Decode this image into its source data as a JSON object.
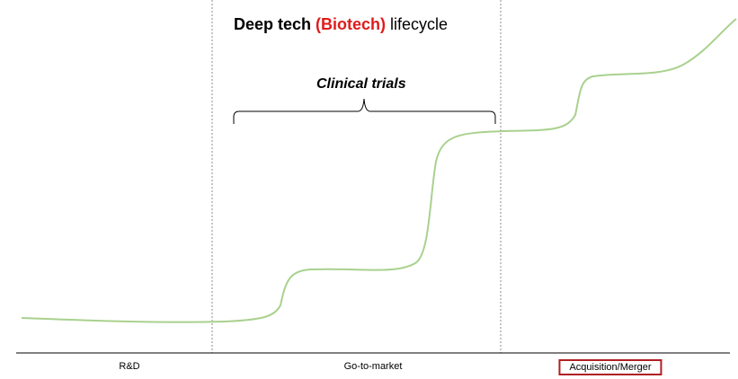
{
  "title": {
    "part1": "Deep tech ",
    "part2": "(Biotech)",
    "part3": " lifecycle",
    "accent_color": "#e01b1b"
  },
  "annotation": {
    "label": "Clinical trials"
  },
  "phases": [
    {
      "label": "R&D"
    },
    {
      "label": "Go-to-market"
    },
    {
      "label": "Acquisition/Merger",
      "highlighted": true,
      "highlight_color": "#b01f24"
    }
  ],
  "curve": {
    "color": "#a9d18e",
    "description_stages": [
      "flat",
      "small step",
      "large step",
      "plateau",
      "step",
      "rise"
    ]
  }
}
